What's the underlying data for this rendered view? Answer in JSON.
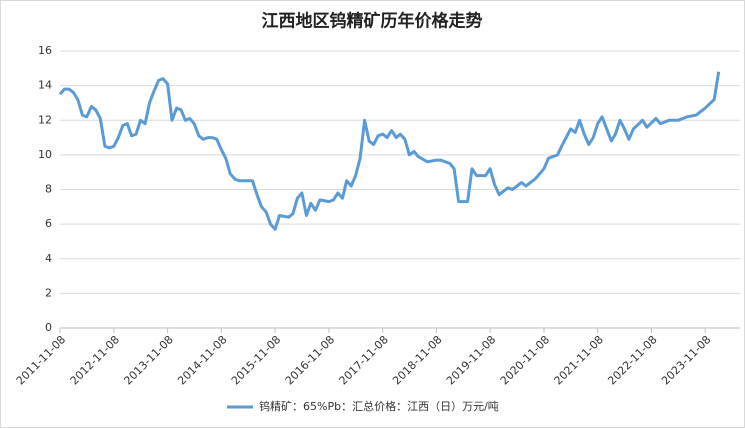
{
  "chart_data": {
    "type": "line",
    "title": "江西地区钨精矿历年价格走势",
    "x": [
      "2011-11-08",
      "2011-12-08",
      "2012-01-08",
      "2012-02-08",
      "2012-03-08",
      "2012-04-08",
      "2012-05-08",
      "2012-06-08",
      "2012-07-08",
      "2012-08-08",
      "2012-09-08",
      "2012-10-08",
      "2012-11-08",
      "2012-12-08",
      "2013-01-08",
      "2013-02-08",
      "2013-03-08",
      "2013-04-08",
      "2013-05-08",
      "2013-06-08",
      "2013-07-08",
      "2013-08-08",
      "2013-09-08",
      "2013-10-08",
      "2013-11-08",
      "2013-12-08",
      "2014-01-08",
      "2014-02-08",
      "2014-03-08",
      "2014-04-08",
      "2014-05-08",
      "2014-06-08",
      "2014-07-08",
      "2014-08-08",
      "2014-09-08",
      "2014-10-08",
      "2014-11-08",
      "2014-12-08",
      "2015-01-08",
      "2015-02-08",
      "2015-03-08",
      "2015-05-08",
      "2015-06-08",
      "2015-07-08",
      "2015-08-08",
      "2015-09-08",
      "2015-10-08",
      "2015-11-08",
      "2015-12-08",
      "2016-02-08",
      "2016-03-08",
      "2016-04-08",
      "2016-05-08",
      "2016-06-08",
      "2016-07-08",
      "2016-08-08",
      "2016-09-08",
      "2016-11-08",
      "2016-12-08",
      "2017-01-08",
      "2017-02-08",
      "2017-03-08",
      "2017-04-08",
      "2017-05-08",
      "2017-06-08",
      "2017-07-08",
      "2017-08-08",
      "2017-09-08",
      "2017-10-08",
      "2017-11-08",
      "2017-12-08",
      "2018-01-08",
      "2018-02-08",
      "2018-03-08",
      "2018-04-08",
      "2018-05-08",
      "2018-06-08",
      "2018-07-08",
      "2018-09-08",
      "2018-11-08",
      "2018-12-08",
      "2019-02-08",
      "2019-03-08",
      "2019-04-08",
      "2019-06-08",
      "2019-07-08",
      "2019-08-08",
      "2019-10-08",
      "2019-11-08",
      "2019-12-08",
      "2020-01-08",
      "2020-03-08",
      "2020-04-08",
      "2020-06-08",
      "2020-07-08",
      "2020-09-08",
      "2020-11-08",
      "2020-12-08",
      "2021-02-08",
      "2021-03-08",
      "2021-05-08",
      "2021-06-08",
      "2021-07-08",
      "2021-08-08",
      "2021-09-08",
      "2021-10-08",
      "2021-11-08",
      "2021-12-08",
      "2022-01-08",
      "2022-02-08",
      "2022-03-08",
      "2022-04-08",
      "2022-05-08",
      "2022-06-08",
      "2022-07-08",
      "2022-09-08",
      "2022-10-08",
      "2022-12-08",
      "2023-01-08",
      "2023-03-08",
      "2023-05-08",
      "2023-07-08",
      "2023-09-08",
      "2023-11-08",
      "2024-01-08",
      "2024-02-08"
    ],
    "series": [
      {
        "name": "钨精矿：65%Pb：汇总价格：江西（日）万元/吨",
        "color": "#5b9bd5",
        "values": [
          13.5,
          13.8,
          13.8,
          13.6,
          13.2,
          12.3,
          12.2,
          12.8,
          12.6,
          12.1,
          10.5,
          10.4,
          10.5,
          11.0,
          11.7,
          11.8,
          11.1,
          11.2,
          12.0,
          11.8,
          13.0,
          13.7,
          14.3,
          14.4,
          14.1,
          12.0,
          12.7,
          12.6,
          12.0,
          12.1,
          11.8,
          11.1,
          10.9,
          11.0,
          11.0,
          10.9,
          10.3,
          9.8,
          8.9,
          8.6,
          8.5,
          8.5,
          8.5,
          7.7,
          7.0,
          6.7,
          6.0,
          5.7,
          6.5,
          6.4,
          6.6,
          7.5,
          7.8,
          6.5,
          7.2,
          6.8,
          7.4,
          7.3,
          7.4,
          7.8,
          7.5,
          8.5,
          8.2,
          8.8,
          9.8,
          12.0,
          10.8,
          10.6,
          11.1,
          11.2,
          11.0,
          11.4,
          11.0,
          11.2,
          10.9,
          10.0,
          10.2,
          9.9,
          9.6,
          9.7,
          9.7,
          9.5,
          9.2,
          7.3,
          7.3,
          9.2,
          8.8,
          8.8,
          9.2,
          8.3,
          7.7,
          8.1,
          8.0,
          8.4,
          8.2,
          8.6,
          9.2,
          9.8,
          10.0,
          10.5,
          11.5,
          11.3,
          12.0,
          11.2,
          10.6,
          11.0,
          11.8,
          12.2,
          11.5,
          10.8,
          11.2,
          12.0,
          11.5,
          10.9,
          11.5,
          12.0,
          11.6,
          12.1,
          11.8,
          12.0,
          12.0,
          12.2,
          12.3,
          12.7,
          13.2,
          14.8
        ]
      }
    ],
    "xlim": [
      "2011-11-08",
      "2024-03-08"
    ],
    "xticks": [
      "2011-11-08",
      "2012-11-08",
      "2013-11-08",
      "2014-11-08",
      "2015-11-08",
      "2016-11-08",
      "2017-11-08",
      "2018-11-08",
      "2019-11-08",
      "2020-11-08",
      "2021-11-08",
      "2022-11-08",
      "2023-11-08"
    ],
    "ylim": [
      0,
      16
    ],
    "yticks": [
      0,
      2,
      4,
      6,
      8,
      10,
      12,
      14,
      16
    ],
    "grid": true
  }
}
